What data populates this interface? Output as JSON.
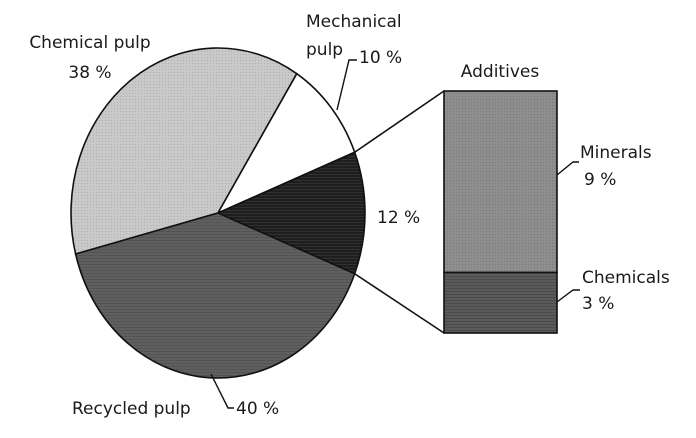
{
  "chart_data": {
    "type": "pie",
    "title": "",
    "slices": [
      {
        "label": "Chemical pulp",
        "value": 38,
        "value_text": "38 %",
        "fill": "#c9c9c9"
      },
      {
        "label": "Mechanical pulp",
        "value": 10,
        "value_text": "10 %",
        "fill": "#ffffff"
      },
      {
        "label": "",
        "value": 12,
        "value_text": "12 %",
        "fill": "#1e1e1e"
      },
      {
        "label": "Recycled pulp",
        "value": 40,
        "value_text": "40 %",
        "fill": "#5f5f5f"
      }
    ],
    "breakdown": {
      "title": "Additives",
      "of_slice_value": 12,
      "segments": [
        {
          "label": "Minerals",
          "value": 9,
          "value_text": "9 %",
          "fill": "#8e8e8e"
        },
        {
          "label": "Chemicals",
          "value": 3,
          "value_text": "3 %",
          "fill": "#5a5a5a"
        }
      ]
    }
  }
}
